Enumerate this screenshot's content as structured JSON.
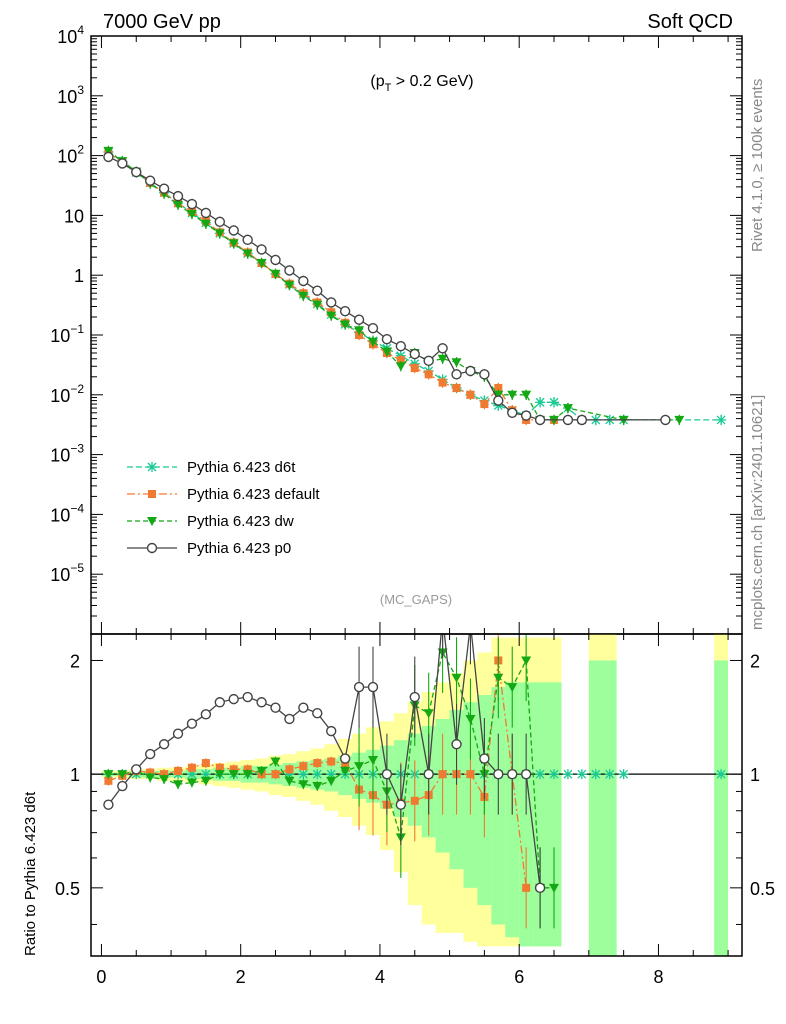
{
  "header": {
    "left_title": "7000 GeV pp",
    "right_title": "Soft QCD"
  },
  "side_labels": {
    "right_top": "Rivet 4.1.0, ≥ 100k events",
    "right_bottom": "mcplots.cern.ch [arXiv:2401.10621]"
  },
  "colors": {
    "d6t": "#19c994",
    "default": "#f07a30",
    "dw": "#14a814",
    "p0": "#444444",
    "band_yellow": "#ffff9c",
    "band_green": "#9cff9c"
  },
  "chart_data": [
    {
      "type": "line",
      "scale": "log",
      "annotation_main": "(p",
      "annotation_sub": "T",
      "annotation_rest": " > 0.2 GeV)",
      "watermark": "(MC_GAPS)",
      "xlim": [
        -0.15,
        9.2
      ],
      "ylim": [
        1e-06,
        10000
      ],
      "y_ticks": [
        {
          "v": 10000,
          "base": "10",
          "exp": "4"
        },
        {
          "v": 1000,
          "base": "10",
          "exp": "3"
        },
        {
          "v": 100,
          "base": "10",
          "exp": "2"
        },
        {
          "v": 10,
          "base": "10",
          "exp": ""
        },
        {
          "v": 1,
          "base": "1",
          "exp": ""
        },
        {
          "v": 0.1,
          "base": "10",
          "exp": "−1"
        },
        {
          "v": 0.01,
          "base": "10",
          "exp": "−2"
        },
        {
          "v": 0.001,
          "base": "10",
          "exp": "−3"
        },
        {
          "v": 0.0001,
          "base": "10",
          "exp": "−4"
        },
        {
          "v": 1e-05,
          "base": "10",
          "exp": "−5"
        }
      ],
      "legend": [
        {
          "key": "d6t",
          "label": "Pythia 6.423 d6t"
        },
        {
          "key": "default",
          "label": "Pythia 6.423 default"
        },
        {
          "key": "dw",
          "label": "Pythia 6.423 dw"
        },
        {
          "key": "p0",
          "label": "Pythia 6.423 p0"
        }
      ],
      "series": [
        {
          "key": "d6t",
          "name": "Pythia 6.423 d6t",
          "marker": "star",
          "dash": "6,3",
          "x": [
            0.1,
            0.3,
            0.5,
            0.7,
            0.9,
            1.1,
            1.3,
            1.5,
            1.7,
            1.9,
            2.1,
            2.3,
            2.5,
            2.7,
            2.9,
            3.1,
            3.3,
            3.5,
            3.7,
            3.9,
            4.1,
            4.3,
            4.5,
            4.7,
            4.9,
            5.1,
            5.3,
            5.5,
            5.7,
            5.9,
            6.1,
            6.3,
            6.5,
            6.7,
            6.9,
            7.1,
            7.3,
            7.5,
            8.9
          ],
          "values": [
            115,
            80,
            52,
            35,
            24,
            16,
            11,
            7.5,
            5.0,
            3.4,
            2.3,
            1.6,
            1.05,
            0.7,
            0.48,
            0.33,
            0.22,
            0.15,
            0.11,
            0.08,
            0.06,
            0.045,
            0.033,
            0.025,
            0.018,
            0.013,
            0.01,
            0.008,
            0.0066,
            0.0055,
            0.0045,
            0.0075,
            0.0075,
            0.006,
            0.0038,
            0.0038,
            0.0038,
            0.0038,
            0.0038
          ]
        },
        {
          "key": "default",
          "name": "Pythia 6.423 default",
          "marker": "square",
          "dash": "8,3,2,3",
          "x": [
            0.1,
            0.3,
            0.5,
            0.7,
            0.9,
            1.1,
            1.3,
            1.5,
            1.7,
            1.9,
            2.1,
            2.3,
            2.5,
            2.7,
            2.9,
            3.1,
            3.3,
            3.5,
            3.7,
            3.9,
            4.1,
            4.3,
            4.5,
            4.7,
            4.9,
            5.1,
            5.3,
            5.5,
            5.7,
            5.9,
            6.1,
            6.5,
            6.9
          ],
          "values": [
            110,
            79,
            53,
            35,
            24,
            16,
            11.5,
            8.0,
            5.2,
            3.5,
            2.4,
            1.6,
            1.05,
            0.72,
            0.5,
            0.35,
            0.24,
            0.16,
            0.1,
            0.07,
            0.05,
            0.038,
            0.028,
            0.022,
            0.016,
            0.013,
            0.01,
            0.007,
            0.013,
            0.0055,
            0.0038,
            0.0038,
            0.0038
          ]
        },
        {
          "key": "dw",
          "name": "Pythia 6.423 dw",
          "marker": "tri",
          "dash": "5,3",
          "x": [
            0.1,
            0.3,
            0.5,
            0.7,
            0.9,
            1.1,
            1.3,
            1.5,
            1.7,
            1.9,
            2.1,
            2.3,
            2.5,
            2.7,
            2.9,
            3.1,
            3.3,
            3.5,
            3.7,
            3.9,
            4.1,
            4.3,
            4.5,
            4.7,
            4.9,
            5.1,
            5.3,
            5.5,
            5.7,
            5.9,
            6.1,
            6.3,
            6.5,
            6.7,
            7.5,
            8.3
          ],
          "values": [
            120,
            81,
            54,
            34,
            23,
            15,
            10.5,
            7.2,
            5.0,
            3.4,
            2.3,
            1.6,
            1.05,
            0.68,
            0.45,
            0.32,
            0.21,
            0.15,
            0.12,
            0.077,
            0.053,
            0.03,
            0.05,
            0.036,
            0.04,
            0.035,
            0.025,
            0.02,
            0.01,
            0.01,
            0.01,
            0.0038,
            0.0038,
            0.006,
            0.0038,
            0.0038
          ]
        },
        {
          "key": "p0",
          "name": "Pythia 6.423 p0",
          "marker": "circle",
          "dash": "",
          "x": [
            0.1,
            0.3,
            0.5,
            0.7,
            0.9,
            1.1,
            1.3,
            1.5,
            1.7,
            1.9,
            2.1,
            2.3,
            2.5,
            2.7,
            2.9,
            3.1,
            3.3,
            3.5,
            3.7,
            3.9,
            4.1,
            4.3,
            4.5,
            4.7,
            4.9,
            5.1,
            5.3,
            5.5,
            5.7,
            5.9,
            6.1,
            6.3,
            6.7,
            6.9,
            8.1
          ],
          "values": [
            95,
            74,
            53,
            38,
            28,
            21,
            15.5,
            11,
            7.8,
            5.6,
            3.9,
            2.7,
            1.8,
            1.2,
            0.8,
            0.55,
            0.35,
            0.25,
            0.18,
            0.13,
            0.085,
            0.065,
            0.048,
            0.037,
            0.06,
            0.022,
            0.025,
            0.022,
            0.008,
            0.005,
            0.0045,
            0.0038,
            0.0038,
            0.0038,
            0.0038
          ]
        }
      ]
    },
    {
      "type": "line",
      "ylabel": "Ratio to Pythia 6.423 d6t",
      "xlim": [
        -0.15,
        9.2
      ],
      "ylim": [
        0.33,
        2.35
      ],
      "x_ticks": [
        "0",
        "2",
        "4",
        "6",
        "8"
      ],
      "y_ticks": [
        {
          "v": 0.5,
          "label": "0.5"
        },
        {
          "v": 1,
          "label": "1"
        },
        {
          "v": 2,
          "label": "2"
        }
      ],
      "band": {
        "x_edges": [
          0,
          0.2,
          0.4,
          0.6,
          0.8,
          1.0,
          1.2,
          1.4,
          1.6,
          1.8,
          2.0,
          2.2,
          2.4,
          2.6,
          2.8,
          3.0,
          3.2,
          3.4,
          3.6,
          3.8,
          4.0,
          4.2,
          4.4,
          4.6,
          4.8,
          5.0,
          5.2,
          5.4,
          5.6,
          5.8,
          6.0,
          6.2,
          6.4,
          6.6
        ],
        "yellow_lo": [
          0.98,
          0.98,
          0.97,
          0.97,
          0.96,
          0.96,
          0.95,
          0.94,
          0.93,
          0.92,
          0.91,
          0.9,
          0.88,
          0.87,
          0.85,
          0.83,
          0.8,
          0.77,
          0.73,
          0.69,
          0.63,
          0.55,
          0.45,
          0.4,
          0.38,
          0.38,
          0.36,
          0.35,
          0.35,
          0.35,
          0.35,
          0.35,
          0.35
        ],
        "yellow_hi": [
          1.02,
          1.02,
          1.03,
          1.03,
          1.04,
          1.04,
          1.05,
          1.06,
          1.07,
          1.08,
          1.09,
          1.1,
          1.12,
          1.13,
          1.15,
          1.17,
          1.2,
          1.24,
          1.28,
          1.33,
          1.38,
          1.45,
          1.55,
          1.65,
          1.75,
          1.85,
          2.0,
          2.1,
          2.3,
          2.3,
          2.3,
          2.3,
          2.3
        ],
        "green_lo": [
          0.99,
          0.99,
          0.98,
          0.98,
          0.98,
          0.98,
          0.97,
          0.97,
          0.96,
          0.96,
          0.95,
          0.95,
          0.94,
          0.93,
          0.92,
          0.91,
          0.9,
          0.88,
          0.86,
          0.84,
          0.81,
          0.77,
          0.73,
          0.68,
          0.62,
          0.56,
          0.5,
          0.45,
          0.4,
          0.37,
          0.35,
          0.35,
          0.35
        ],
        "green_hi": [
          1.01,
          1.01,
          1.02,
          1.02,
          1.02,
          1.02,
          1.03,
          1.03,
          1.04,
          1.04,
          1.05,
          1.05,
          1.06,
          1.07,
          1.08,
          1.09,
          1.1,
          1.12,
          1.14,
          1.16,
          1.19,
          1.23,
          1.28,
          1.34,
          1.4,
          1.48,
          1.55,
          1.62,
          1.7,
          1.75,
          1.75,
          1.75,
          1.75
        ],
        "extra_green": [
          [
            7.0,
            7.4
          ],
          [
            8.8,
            9.0
          ]
        ]
      },
      "series": [
        {
          "key": "default",
          "marker": "square",
          "dash": "8,3,2,3",
          "x": [
            0.1,
            0.3,
            0.5,
            0.7,
            0.9,
            1.1,
            1.3,
            1.5,
            1.7,
            1.9,
            2.1,
            2.3,
            2.5,
            2.7,
            2.9,
            3.1,
            3.3,
            3.5,
            3.7,
            3.9,
            4.1,
            4.3,
            4.5,
            4.7,
            4.9,
            5.1,
            5.3,
            5.5,
            5.7,
            5.9,
            6.1
          ],
          "values": [
            0.96,
            0.99,
            1.02,
            1.01,
            1.0,
            1.02,
            1.04,
            1.07,
            1.04,
            1.03,
            1.03,
            1.0,
            1.0,
            1.03,
            1.05,
            1.07,
            1.08,
            1.07,
            0.91,
            0.88,
            0.83,
            0.84,
            0.85,
            0.88,
            1.0,
            1.0,
            1.0,
            0.87,
            2.0,
            1.0,
            0.5
          ]
        },
        {
          "key": "dw",
          "marker": "tri",
          "dash": "5,3",
          "x": [
            0.1,
            0.3,
            0.5,
            0.7,
            0.9,
            1.1,
            1.3,
            1.5,
            1.7,
            1.9,
            2.1,
            2.3,
            2.5,
            2.7,
            2.9,
            3.1,
            3.3,
            3.5,
            3.7,
            3.9,
            4.1,
            4.3,
            4.5,
            4.7,
            4.9,
            5.1,
            5.3,
            5.5,
            5.7,
            5.9,
            6.1,
            6.3,
            6.5
          ],
          "values": [
            1.0,
            1.0,
            1.02,
            0.98,
            0.97,
            0.94,
            0.95,
            0.96,
            1.0,
            1.0,
            1.0,
            1.02,
            1.08,
            0.96,
            0.94,
            0.93,
            0.96,
            1.02,
            1.05,
            1.09,
            0.9,
            0.68,
            1.52,
            1.45,
            2.1,
            1.8,
            1.4,
            1.0,
            1.8,
            1.7,
            2.0,
            0.5,
            0.5
          ]
        },
        {
          "key": "p0",
          "marker": "circle",
          "dash": "",
          "x": [
            0.1,
            0.3,
            0.5,
            0.7,
            0.9,
            1.1,
            1.3,
            1.5,
            1.7,
            1.9,
            2.1,
            2.3,
            2.5,
            2.7,
            2.9,
            3.1,
            3.3,
            3.5,
            3.7,
            3.9,
            4.1,
            4.3,
            4.5,
            4.7,
            4.9,
            5.1,
            5.3,
            5.5,
            5.7,
            5.9,
            6.1,
            6.3
          ],
          "values": [
            0.83,
            0.93,
            1.03,
            1.13,
            1.2,
            1.28,
            1.36,
            1.44,
            1.55,
            1.58,
            1.6,
            1.55,
            1.5,
            1.4,
            1.5,
            1.45,
            1.3,
            1.1,
            1.7,
            1.7,
            1.0,
            0.83,
            1.6,
            1.0,
            2.6,
            1.2,
            2.5,
            1.1,
            1.0,
            1.0,
            1.0,
            0.5
          ]
        }
      ]
    }
  ]
}
